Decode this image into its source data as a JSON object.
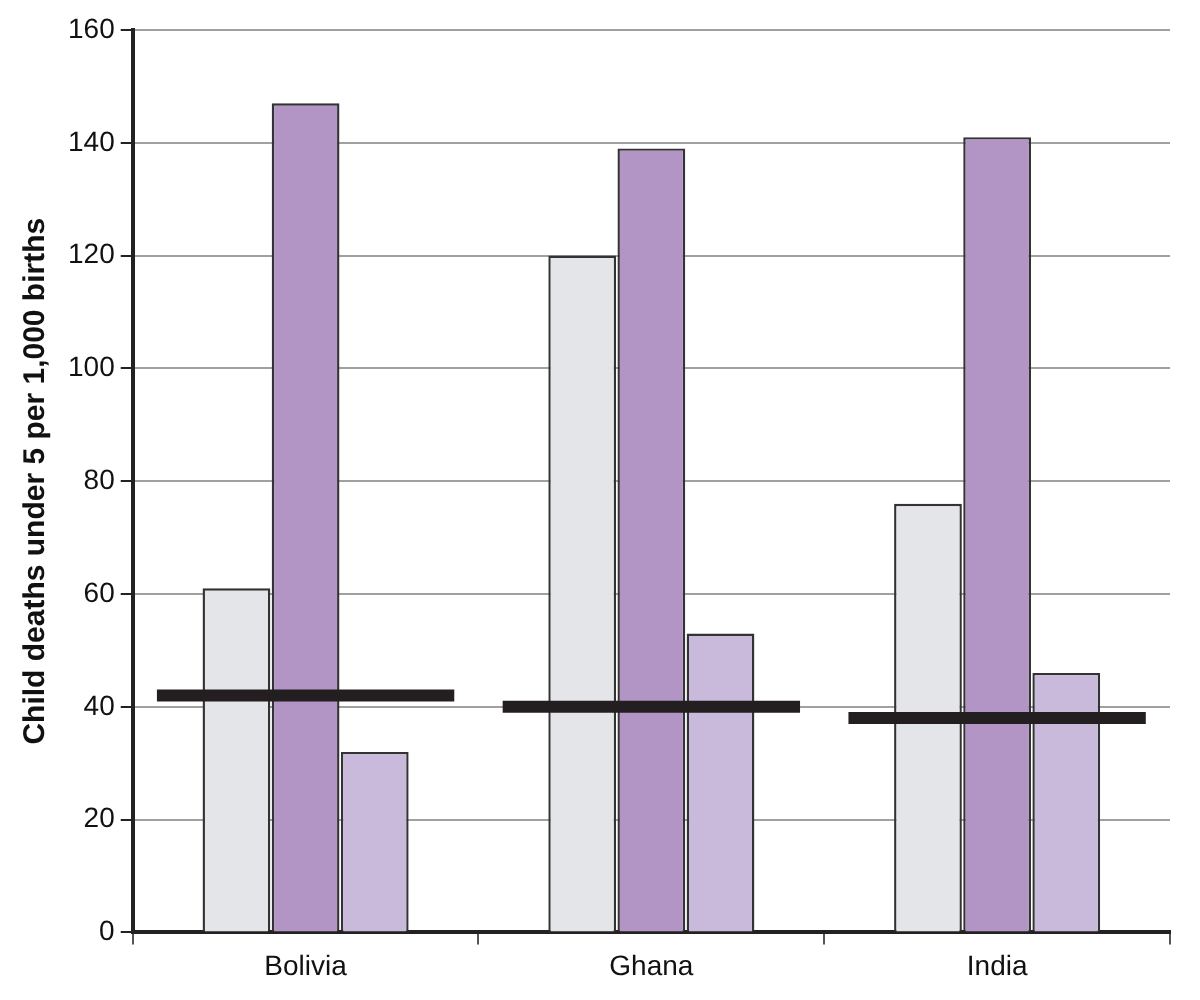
{
  "chart_data": {
    "type": "bar",
    "ylabel": "Child deaths under 5 per 1,000 births",
    "categories": [
      "Bolivia",
      "Ghana",
      "India"
    ],
    "series": [
      {
        "color": "#e4e5e8",
        "values": [
          61,
          120,
          76
        ]
      },
      {
        "color": "#b294c5",
        "values": [
          147,
          139,
          141
        ]
      },
      {
        "color": "#c9badc",
        "values": [
          32,
          53,
          46
        ]
      }
    ],
    "ref_lines": [
      {
        "axis": "y",
        "value": 42,
        "color": "#231f20"
      },
      {
        "axis": "y",
        "value": 40,
        "color": "#231f20"
      },
      {
        "axis": "y",
        "value": 38,
        "color": "#231f20"
      }
    ],
    "ylim": [
      0,
      160
    ],
    "yticks": [
      0,
      20,
      40,
      60,
      80,
      100,
      120,
      140,
      160
    ],
    "grid": "y",
    "legend": false
  }
}
